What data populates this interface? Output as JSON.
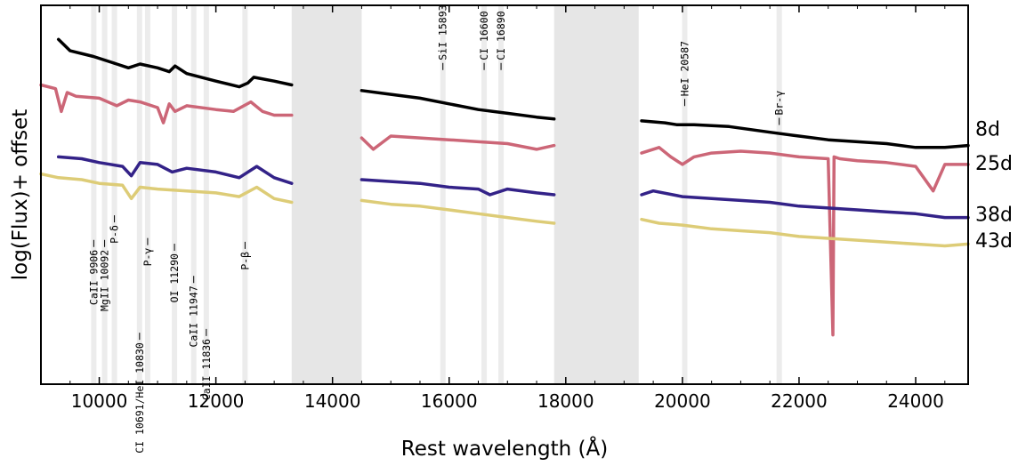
{
  "chart_data": {
    "type": "line",
    "title": "",
    "xlabel": "Rest wavelength (Å)",
    "ylabel": "log(Flux)+ offset",
    "xlim": [
      9000,
      24900
    ],
    "ylim": [
      0,
      1
    ],
    "xticks": [
      10000,
      12000,
      14000,
      16000,
      18000,
      20000,
      22000,
      24000
    ],
    "xtick_labels": [
      "10000",
      "12000",
      "14000",
      "16000",
      "18000",
      "20000",
      "22000",
      "24000"
    ],
    "yticks_shown": false,
    "telluric_bands": [
      [
        13300,
        14500
      ],
      [
        17800,
        19250
      ]
    ],
    "band_color": "#e6e6e6",
    "line_markers": [
      {
        "label": "CaII 9906",
        "wavelength": 9906,
        "y": 0.355,
        "tick": "top",
        "vertical": true
      },
      {
        "label": "MgII 10092",
        "wavelength": 10092,
        "y": 0.355,
        "tick": "top",
        "vertical": true
      },
      {
        "label": "P-δ",
        "wavelength": 10260,
        "y": 0.42,
        "tick": "top",
        "vertical": true
      },
      {
        "label": "CI 10691/HeI 10830",
        "wavelength": 10691,
        "y": 0.11,
        "tick": "top",
        "vertical": true
      },
      {
        "label": "P-γ",
        "wavelength": 10830,
        "y": 0.36,
        "tick": "top",
        "vertical": true
      },
      {
        "label": "OI 11290",
        "wavelength": 11290,
        "y": 0.345,
        "tick": "top",
        "vertical": true
      },
      {
        "label": "CaII 11947",
        "wavelength": 11620,
        "y": 0.26,
        "tick": "top",
        "vertical": true
      },
      {
        "label": "CaII 11836",
        "wavelength": 11836,
        "y": 0.12,
        "tick": "top",
        "vertical": true
      },
      {
        "label": "P-β",
        "wavelength": 12500,
        "y": 0.35,
        "tick": "top",
        "vertical": true
      },
      {
        "label": "SiI 15893",
        "wavelength": 15893,
        "y": 0.855,
        "tick": "bottom",
        "vertical": true
      },
      {
        "label": "CI 16600",
        "wavelength": 16600,
        "y": 0.855,
        "tick": "bottom",
        "vertical": true
      },
      {
        "label": "CI 16890",
        "wavelength": 16890,
        "y": 0.855,
        "tick": "bottom",
        "vertical": true
      },
      {
        "label": "HeI 20587",
        "wavelength": 20040,
        "y": 0.76,
        "tick": "bottom",
        "vertical": true
      },
      {
        "label": "Br-γ",
        "wavelength": 21660,
        "y": 0.71,
        "tick": "bottom",
        "vertical": true
      }
    ],
    "series": [
      {
        "name": "8d",
        "color": "#000000",
        "label_y": 0.675,
        "segments": [
          {
            "x": [
              9300,
              9500,
              9900,
              10300,
              10500,
              10700,
              11000,
              11200,
              11300,
              11500,
              12000,
              12400,
              12550,
              12650,
              13000,
              13300
            ],
            "y": [
              0.91,
              0.88,
              0.865,
              0.845,
              0.835,
              0.845,
              0.835,
              0.825,
              0.84,
              0.82,
              0.8,
              0.785,
              0.795,
              0.81,
              0.8,
              0.79
            ]
          },
          {
            "x": [
              14500,
              15000,
              15500,
              16000,
              16500,
              17000,
              17500,
              17800
            ],
            "y": [
              0.775,
              0.765,
              0.755,
              0.74,
              0.725,
              0.715,
              0.705,
              0.7
            ]
          },
          {
            "x": [
              19300,
              19700,
              19900,
              20200,
              20800,
              21500,
              22000,
              22500,
              23000,
              23500,
              24000,
              24500,
              24900
            ],
            "y": [
              0.695,
              0.69,
              0.685,
              0.685,
              0.68,
              0.665,
              0.655,
              0.645,
              0.64,
              0.635,
              0.625,
              0.625,
              0.63
            ]
          }
        ]
      },
      {
        "name": "25d",
        "color": "#cc6677",
        "label_y": 0.585,
        "segments": [
          {
            "x": [
              9000,
              9250,
              9350,
              9450,
              9600,
              10000,
              10300,
              10500,
              10700,
              11000,
              11100,
              11200,
              11300,
              11500,
              12000,
              12300,
              12600,
              12800,
              13000,
              13300
            ],
            "y": [
              0.79,
              0.78,
              0.72,
              0.77,
              0.76,
              0.755,
              0.735,
              0.75,
              0.745,
              0.73,
              0.69,
              0.74,
              0.72,
              0.735,
              0.725,
              0.72,
              0.745,
              0.72,
              0.71,
              0.71
            ]
          },
          {
            "x": [
              14500,
              14700,
              15000,
              15500,
              16000,
              16500,
              17000,
              17500,
              17800
            ],
            "y": [
              0.65,
              0.62,
              0.655,
              0.65,
              0.645,
              0.64,
              0.635,
              0.62,
              0.63
            ]
          },
          {
            "x": [
              19300,
              19600,
              19800,
              20000,
              20200,
              20500,
              21000,
              21500,
              22000,
              22500,
              22580,
              22600,
              22700,
              23000,
              23500,
              24000,
              24300,
              24500,
              24900
            ],
            "y": [
              0.61,
              0.625,
              0.6,
              0.58,
              0.6,
              0.61,
              0.615,
              0.61,
              0.6,
              0.595,
              0.13,
              0.6,
              0.595,
              0.59,
              0.585,
              0.575,
              0.51,
              0.58,
              0.58
            ]
          }
        ]
      },
      {
        "name": "38d",
        "color": "#332288",
        "label_y": 0.45,
        "segments": [
          {
            "x": [
              9300,
              9700,
              10000,
              10400,
              10550,
              10700,
              11000,
              11250,
              11500,
              12000,
              12400,
              12700,
              13000,
              13300
            ],
            "y": [
              0.6,
              0.595,
              0.585,
              0.575,
              0.55,
              0.585,
              0.58,
              0.56,
              0.57,
              0.56,
              0.545,
              0.575,
              0.545,
              0.53
            ]
          },
          {
            "x": [
              14500,
              15000,
              15500,
              16000,
              16500,
              16700,
              17000,
              17500,
              17800
            ],
            "y": [
              0.54,
              0.535,
              0.53,
              0.52,
              0.515,
              0.5,
              0.515,
              0.505,
              0.5
            ]
          },
          {
            "x": [
              19300,
              19500,
              20000,
              20500,
              21000,
              21500,
              22000,
              22500,
              23000,
              23500,
              24000,
              24500,
              24900
            ],
            "y": [
              0.5,
              0.51,
              0.495,
              0.49,
              0.485,
              0.48,
              0.47,
              0.465,
              0.46,
              0.455,
              0.45,
              0.44,
              0.44
            ]
          }
        ]
      },
      {
        "name": "43d",
        "color": "#ddcc77",
        "label_y": 0.38,
        "segments": [
          {
            "x": [
              9000,
              9300,
              9700,
              10000,
              10400,
              10550,
              10700,
              11000,
              11500,
              12000,
              12400,
              12700,
              13000,
              13300
            ],
            "y": [
              0.555,
              0.545,
              0.54,
              0.53,
              0.525,
              0.49,
              0.52,
              0.515,
              0.51,
              0.505,
              0.495,
              0.52,
              0.49,
              0.48
            ]
          },
          {
            "x": [
              14500,
              15000,
              15500,
              16000,
              16500,
              17000,
              17500,
              17800
            ],
            "y": [
              0.485,
              0.475,
              0.47,
              0.46,
              0.45,
              0.44,
              0.43,
              0.425
            ]
          },
          {
            "x": [
              19300,
              19600,
              20000,
              20500,
              21000,
              21500,
              22000,
              22500,
              23000,
              23500,
              24000,
              24500,
              24900
            ],
            "y": [
              0.435,
              0.425,
              0.42,
              0.41,
              0.405,
              0.4,
              0.39,
              0.385,
              0.38,
              0.375,
              0.37,
              0.365,
              0.37
            ]
          }
        ]
      }
    ]
  }
}
